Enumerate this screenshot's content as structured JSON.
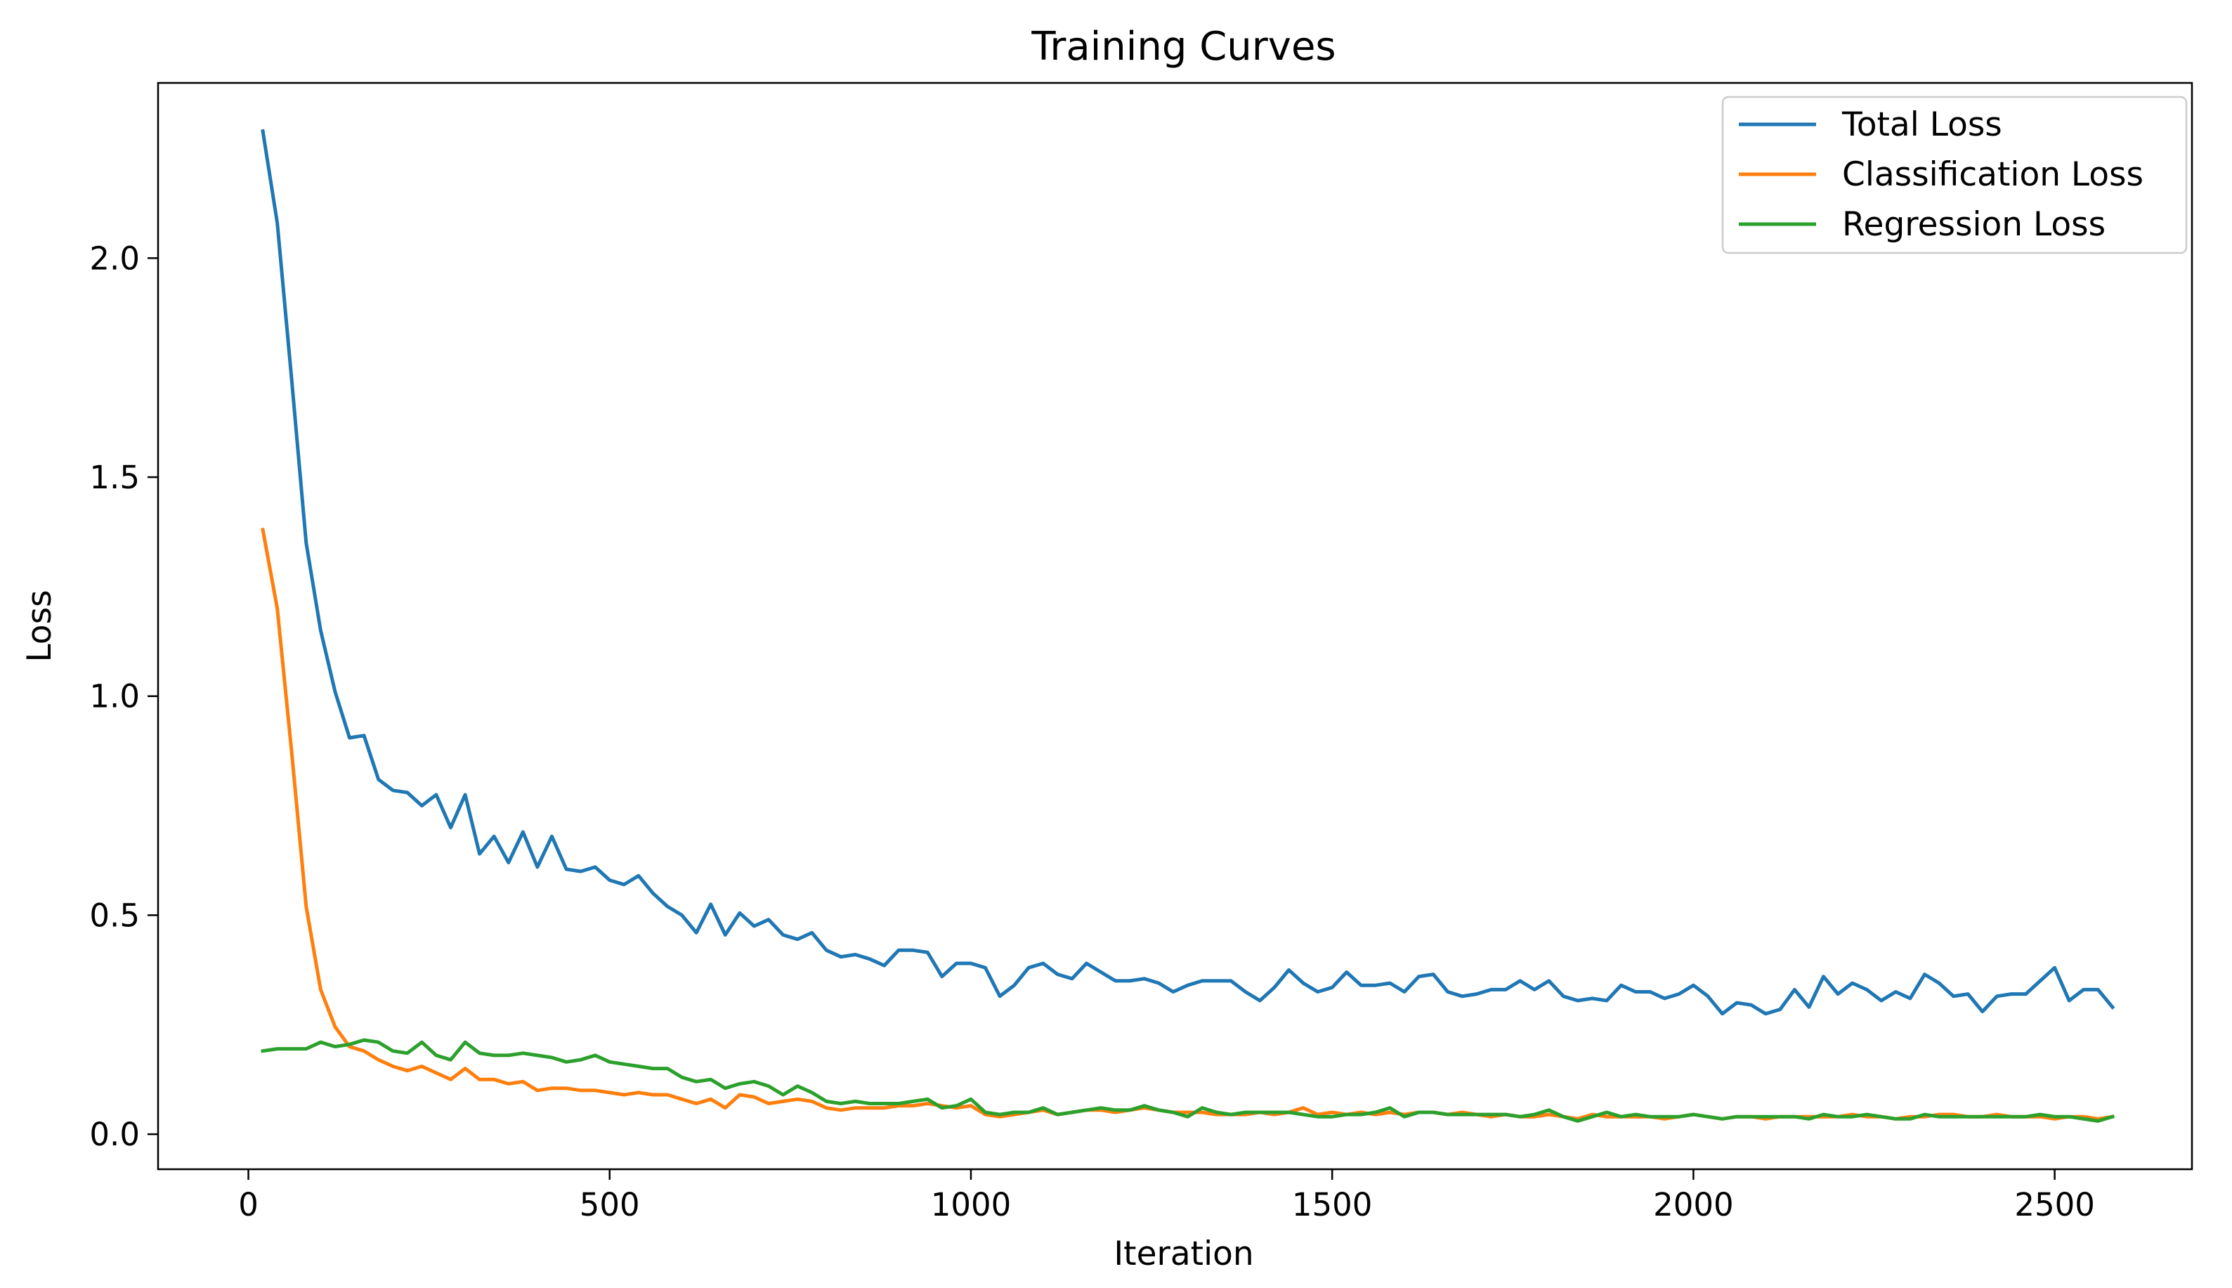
{
  "chart_data": {
    "type": "line",
    "title": "Training Curves",
    "xlabel": "Iteration",
    "ylabel": "Loss",
    "xlim": [
      -125,
      2690
    ],
    "ylim": [
      -0.08,
      2.4
    ],
    "xticks": [
      0,
      500,
      1000,
      1500,
      2000,
      2500
    ],
    "xtick_labels": [
      "0",
      "500",
      "1000",
      "1500",
      "2000",
      "2500"
    ],
    "yticks": [
      0.0,
      0.5,
      1.0,
      1.5,
      2.0
    ],
    "ytick_labels": [
      "0.0",
      "0.5",
      "1.0",
      "1.5",
      "2.0"
    ],
    "grid": false,
    "legend_position": "top-right",
    "x": [
      20,
      40,
      60,
      80,
      100,
      120,
      140,
      160,
      180,
      200,
      220,
      240,
      260,
      280,
      300,
      320,
      340,
      360,
      380,
      400,
      420,
      440,
      460,
      480,
      500,
      520,
      540,
      560,
      580,
      600,
      620,
      640,
      660,
      680,
      700,
      720,
      740,
      760,
      780,
      800,
      820,
      840,
      860,
      880,
      900,
      920,
      940,
      960,
      980,
      1000,
      1020,
      1040,
      1060,
      1080,
      1100,
      1120,
      1140,
      1160,
      1180,
      1200,
      1220,
      1240,
      1260,
      1280,
      1300,
      1320,
      1340,
      1360,
      1380,
      1400,
      1420,
      1440,
      1460,
      1480,
      1500,
      1520,
      1540,
      1560,
      1580,
      1600,
      1620,
      1640,
      1660,
      1680,
      1700,
      1720,
      1740,
      1760,
      1780,
      1800,
      1820,
      1840,
      1860,
      1880,
      1900,
      1920,
      1940,
      1960,
      1980,
      2000,
      2020,
      2040,
      2060,
      2080,
      2100,
      2120,
      2140,
      2160,
      2180,
      2200,
      2220,
      2240,
      2260,
      2280,
      2300,
      2320,
      2340,
      2360,
      2380,
      2400,
      2420,
      2440,
      2460,
      2480,
      2500,
      2520,
      2540,
      2560,
      2580
    ],
    "series": [
      {
        "name": "Total Loss",
        "color": "#1f77b4",
        "values": [
          2.29,
          2.08,
          1.72,
          1.35,
          1.15,
          1.01,
          0.905,
          0.91,
          0.81,
          0.785,
          0.78,
          0.75,
          0.775,
          0.7,
          0.775,
          0.64,
          0.68,
          0.62,
          0.69,
          0.61,
          0.68,
          0.605,
          0.6,
          0.61,
          0.58,
          0.57,
          0.59,
          0.55,
          0.52,
          0.5,
          0.46,
          0.525,
          0.455,
          0.505,
          0.475,
          0.49,
          0.455,
          0.445,
          0.46,
          0.42,
          0.405,
          0.41,
          0.4,
          0.385,
          0.42,
          0.42,
          0.415,
          0.36,
          0.39,
          0.39,
          0.38,
          0.315,
          0.34,
          0.38,
          0.39,
          0.365,
          0.355,
          0.39,
          0.37,
          0.35,
          0.35,
          0.355,
          0.345,
          0.325,
          0.34,
          0.35,
          0.35,
          0.35,
          0.325,
          0.305,
          0.335,
          0.375,
          0.345,
          0.325,
          0.335,
          0.37,
          0.34,
          0.34,
          0.345,
          0.325,
          0.36,
          0.365,
          0.325,
          0.315,
          0.32,
          0.33,
          0.33,
          0.35,
          0.33,
          0.35,
          0.315,
          0.305,
          0.31,
          0.305,
          0.34,
          0.325,
          0.325,
          0.31,
          0.32,
          0.34,
          0.315,
          0.275,
          0.3,
          0.295,
          0.275,
          0.285,
          0.33,
          0.29,
          0.36,
          0.32,
          0.345,
          0.33,
          0.305,
          0.325,
          0.31,
          0.365,
          0.345,
          0.315,
          0.32,
          0.28,
          0.315,
          0.32,
          0.32,
          0.35,
          0.38,
          0.305,
          0.33,
          0.33,
          0.29
        ]
      },
      {
        "name": "Classification Loss",
        "color": "#ff7f0e",
        "values": [
          1.38,
          1.2,
          0.87,
          0.52,
          0.33,
          0.245,
          0.2,
          0.19,
          0.17,
          0.155,
          0.145,
          0.155,
          0.14,
          0.125,
          0.15,
          0.125,
          0.125,
          0.115,
          0.12,
          0.1,
          0.105,
          0.105,
          0.1,
          0.1,
          0.095,
          0.09,
          0.095,
          0.09,
          0.09,
          0.08,
          0.07,
          0.08,
          0.06,
          0.09,
          0.085,
          0.07,
          0.075,
          0.08,
          0.075,
          0.06,
          0.055,
          0.06,
          0.06,
          0.06,
          0.065,
          0.065,
          0.07,
          0.065,
          0.06,
          0.065,
          0.045,
          0.04,
          0.045,
          0.05,
          0.055,
          0.045,
          0.05,
          0.055,
          0.055,
          0.05,
          0.055,
          0.06,
          0.055,
          0.05,
          0.05,
          0.05,
          0.045,
          0.045,
          0.045,
          0.05,
          0.045,
          0.05,
          0.06,
          0.045,
          0.05,
          0.045,
          0.05,
          0.045,
          0.05,
          0.045,
          0.05,
          0.05,
          0.045,
          0.05,
          0.045,
          0.04,
          0.045,
          0.04,
          0.04,
          0.045,
          0.04,
          0.035,
          0.045,
          0.04,
          0.04,
          0.04,
          0.04,
          0.035,
          0.04,
          0.045,
          0.04,
          0.035,
          0.04,
          0.04,
          0.035,
          0.04,
          0.04,
          0.04,
          0.04,
          0.04,
          0.045,
          0.04,
          0.04,
          0.035,
          0.04,
          0.04,
          0.045,
          0.045,
          0.04,
          0.04,
          0.045,
          0.04,
          0.04,
          0.04,
          0.035,
          0.04,
          0.04,
          0.035,
          0.04
        ]
      },
      {
        "name": "Regression Loss",
        "color": "#2ca02c",
        "values": [
          0.19,
          0.195,
          0.195,
          0.195,
          0.21,
          0.2,
          0.205,
          0.215,
          0.21,
          0.19,
          0.185,
          0.21,
          0.18,
          0.17,
          0.21,
          0.185,
          0.18,
          0.18,
          0.185,
          0.18,
          0.175,
          0.165,
          0.17,
          0.18,
          0.165,
          0.16,
          0.155,
          0.15,
          0.15,
          0.13,
          0.12,
          0.125,
          0.105,
          0.115,
          0.12,
          0.11,
          0.09,
          0.11,
          0.095,
          0.075,
          0.07,
          0.075,
          0.07,
          0.07,
          0.07,
          0.075,
          0.08,
          0.06,
          0.065,
          0.08,
          0.05,
          0.045,
          0.05,
          0.05,
          0.06,
          0.045,
          0.05,
          0.055,
          0.06,
          0.055,
          0.055,
          0.065,
          0.055,
          0.05,
          0.04,
          0.06,
          0.05,
          0.045,
          0.05,
          0.05,
          0.05,
          0.05,
          0.045,
          0.04,
          0.04,
          0.045,
          0.045,
          0.05,
          0.06,
          0.04,
          0.05,
          0.05,
          0.045,
          0.045,
          0.045,
          0.045,
          0.045,
          0.04,
          0.045,
          0.055,
          0.04,
          0.03,
          0.04,
          0.05,
          0.04,
          0.045,
          0.04,
          0.04,
          0.04,
          0.045,
          0.04,
          0.035,
          0.04,
          0.04,
          0.04,
          0.04,
          0.04,
          0.035,
          0.045,
          0.04,
          0.04,
          0.045,
          0.04,
          0.035,
          0.035,
          0.045,
          0.04,
          0.04,
          0.04,
          0.04,
          0.04,
          0.04,
          0.04,
          0.045,
          0.04,
          0.04,
          0.035,
          0.03,
          0.04
        ]
      }
    ]
  }
}
